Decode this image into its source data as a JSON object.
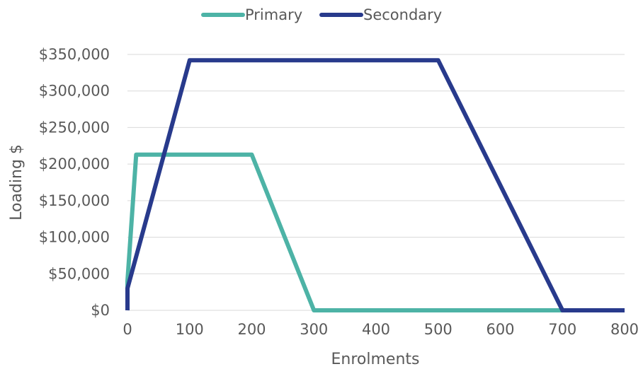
{
  "chart_data": {
    "type": "line",
    "title": "",
    "xlabel": "Enrolments",
    "ylabel": "Loading $",
    "xlim": [
      0,
      800
    ],
    "ylim": [
      0,
      350000
    ],
    "x_ticks": [
      0,
      100,
      200,
      300,
      400,
      500,
      600,
      700,
      800
    ],
    "y_ticks": [
      0,
      50000,
      100000,
      150000,
      200000,
      250000,
      300000,
      350000
    ],
    "x_tick_labels": [
      "0",
      "100",
      "200",
      "300",
      "400",
      "500",
      "600",
      "700",
      "800"
    ],
    "y_tick_labels": [
      "$0",
      "$50,000",
      "$100,000",
      "$150,000",
      "$200,000",
      "$250,000",
      "$300,000",
      "$350,000"
    ],
    "grid": "horizontal",
    "legend": "top-center",
    "series": [
      {
        "name": "Primary",
        "color": "#4db3a6",
        "points": [
          [
            0,
            0
          ],
          [
            0,
            40000
          ],
          [
            14,
            213000
          ],
          [
            200,
            213000
          ],
          [
            300,
            0
          ],
          [
            700,
            0
          ]
        ]
      },
      {
        "name": "Secondary",
        "color": "#283a8c",
        "points": [
          [
            0,
            0
          ],
          [
            0,
            30000
          ],
          [
            100,
            342000
          ],
          [
            500,
            342000
          ],
          [
            700,
            0
          ],
          [
            800,
            0
          ]
        ]
      }
    ]
  }
}
